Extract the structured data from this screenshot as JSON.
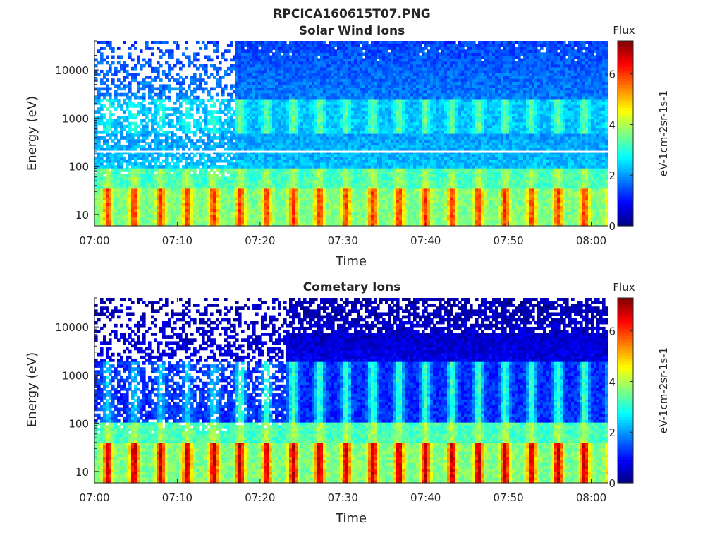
{
  "figure": {
    "title": "RPCICA160615T07.PNG"
  },
  "chart_data": [
    {
      "type": "heatmap",
      "title": "Solar Wind Ions",
      "xlabel": "Time",
      "ylabel": "Energy (eV)",
      "x_ticks": [
        "07:00",
        "07:10",
        "07:20",
        "07:30",
        "07:40",
        "07:50",
        "08:00"
      ],
      "x_tick_minutes": [
        0,
        10,
        20,
        30,
        40,
        50,
        60
      ],
      "xlim_minutes": [
        0,
        62
      ],
      "y_scale": "log",
      "ylim": [
        5.8,
        40000
      ],
      "y_ticks": [
        "10",
        "100",
        "1000",
        "10000"
      ],
      "y_tick_values": [
        10,
        100,
        1000,
        10000
      ],
      "colorbar": {
        "title": "Flux",
        "label": "eV-1cm-2sr-1s-1",
        "ticks": [
          "0",
          "2",
          "4",
          "6"
        ],
        "tick_values": [
          0,
          2,
          4,
          6
        ],
        "range": [
          0,
          7.3
        ],
        "colormap": "jet"
      },
      "features": {
        "low_energy_band_eV": [
          6,
          35
        ],
        "low_energy_peak_flux": 6,
        "mid_energy_band_eV": [
          500,
          2500
        ],
        "mid_energy_peak_flux": 3.5,
        "background_flux": 2.3,
        "gap_line_energy_eV": 200,
        "sparse_until_minute": 17,
        "pulse_period_minutes": 3.2
      }
    },
    {
      "type": "heatmap",
      "title": "Cometary Ions",
      "xlabel": "Time",
      "ylabel": "Energy (eV)",
      "x_ticks": [
        "07:00",
        "07:10",
        "07:20",
        "07:30",
        "07:40",
        "07:50",
        "08:00"
      ],
      "x_tick_minutes": [
        0,
        10,
        20,
        30,
        40,
        50,
        60
      ],
      "xlim_minutes": [
        0,
        62
      ],
      "y_scale": "log",
      "ylim": [
        5.8,
        40000
      ],
      "y_ticks": [
        "10",
        "100",
        "1000",
        "10000"
      ],
      "y_tick_values": [
        10,
        100,
        1000,
        10000
      ],
      "colorbar": {
        "title": "Flux",
        "label": "eV-1cm-2sr-1s-1",
        "ticks": [
          "0",
          "2",
          "4",
          "6"
        ],
        "tick_values": [
          0,
          2,
          4,
          6
        ],
        "range": [
          0,
          7.3
        ],
        "colormap": "jet"
      },
      "features": {
        "low_energy_band_eV": [
          6,
          40
        ],
        "low_energy_peak_flux": 6.8,
        "mid_energy_band_eV": [
          30,
          2000
        ],
        "mid_energy_peak_flux": 3.2,
        "background_flux": 1.2,
        "sparse_until_minute": 23,
        "pulse_period_minutes": 3.2
      }
    }
  ]
}
